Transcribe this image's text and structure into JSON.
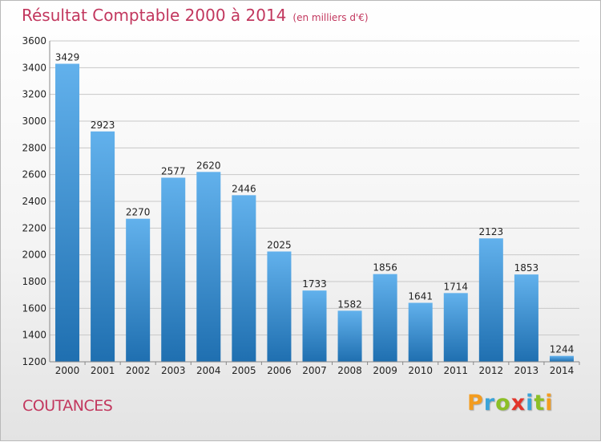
{
  "chart_data": {
    "type": "bar",
    "title": "Résultat Comptable 2000 à 2014",
    "subtitle": "(en milliers d'€)",
    "categories": [
      "2000",
      "2001",
      "2002",
      "2003",
      "2004",
      "2005",
      "2006",
      "2007",
      "2008",
      "2009",
      "2010",
      "2011",
      "2012",
      "2013",
      "2014"
    ],
    "values": [
      3429,
      2923,
      2270,
      2577,
      2620,
      2446,
      2025,
      1733,
      1582,
      1856,
      1641,
      1714,
      2123,
      1853,
      1244
    ],
    "xlabel": "",
    "ylabel": "",
    "ylim": [
      1200,
      3600
    ],
    "yticks": [
      1200,
      1400,
      1600,
      1800,
      2000,
      2200,
      2400,
      2600,
      2800,
      3000,
      3200,
      3400,
      3600
    ],
    "grid": true,
    "colors": {
      "bar_top": "#62b1ec",
      "bar_bottom": "#1f6fb0",
      "grid": "#c8c8c8",
      "title": "#c2375e"
    }
  },
  "footer": {
    "city": "COUTANCES",
    "brand_letters": [
      {
        "char": "P",
        "color": "#f39c1f"
      },
      {
        "char": "r",
        "color": "#3aa3d8"
      },
      {
        "char": "o",
        "color": "#8cbf26"
      },
      {
        "char": "x",
        "color": "#e2352b"
      },
      {
        "char": "i",
        "color": "#3aa3d8"
      },
      {
        "char": "t",
        "color": "#8cbf26"
      },
      {
        "char": "i",
        "color": "#f39c1f"
      }
    ]
  }
}
